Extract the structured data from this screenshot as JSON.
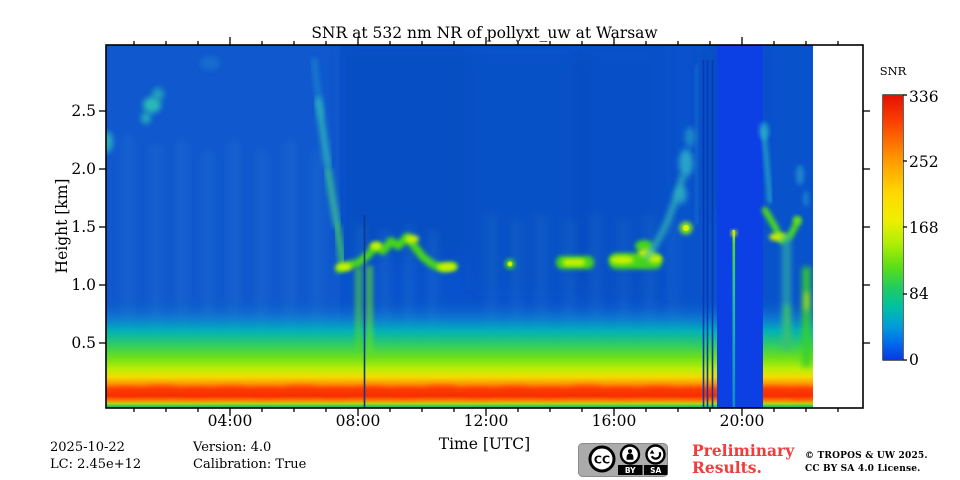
{
  "figure": {
    "title": "SNR at 532 nm NR of pollyxt_uw at Warsaw"
  },
  "axes": {
    "xlabel": "Time [UTC]",
    "ylabel": "Height [km]",
    "xticks": [
      "04:00",
      "08:00",
      "12:00",
      "16:00",
      "20:00"
    ],
    "yticks": [
      "2.5",
      "2.0",
      "1.5",
      "1.0",
      "0.5"
    ]
  },
  "colorbar": {
    "label": "SNR",
    "ticks": [
      "336",
      "252",
      "168",
      "84",
      "0"
    ]
  },
  "chart_data": {
    "type": "heatmap",
    "title": "SNR at 532 nm NR of pollyxt_uw at Warsaw",
    "xlabel": "Time [UTC]",
    "ylabel": "Height [km]",
    "x_axis": {
      "start": "00:00",
      "end": "23:50",
      "major_ticks": [
        "04:00",
        "08:00",
        "12:00",
        "16:00",
        "20:00"
      ],
      "minor_tick_interval_hours": 1
    },
    "y_axis": {
      "min_km": 0.0,
      "max_km": 3.05,
      "ticks_km": [
        0.5,
        1.0,
        1.5,
        2.0,
        2.5
      ]
    },
    "colorbar": {
      "label": "SNR",
      "min": 0,
      "max": 336,
      "ticks": [
        0,
        84,
        168,
        252,
        336
      ],
      "colormap": "jet"
    },
    "data_coverage": {
      "start": "00:05",
      "end": "22:15",
      "gaps": [
        "~08:20 thin gap",
        "~18:50, ~18:58, ~19:05 thin gaps",
        "19:15-20:35 no-data band with one profile at ~19:45"
      ],
      "no_data_after": "22:15 (white until 24:00)"
    },
    "features": [
      {
        "desc": "strong near-surface layer (red/orange band)",
        "time": "00:00-22:15",
        "height_km": [
          0.0,
          0.25
        ],
        "snr": [
          250,
          336
        ]
      },
      {
        "desc": "surface gradient cyan-green-yellow-red toward ground, wavy texture",
        "time": "all",
        "height_km": [
          0.0,
          0.6
        ]
      },
      {
        "desc": "weak cloud/aerosol patch",
        "time": "01:30-02:00",
        "height_km": [
          2.1,
          2.4
        ],
        "snr": 90
      },
      {
        "desc": "small cyan patch at left edge",
        "time": "00:00-00:15",
        "height_km": [
          2.2,
          2.35
        ],
        "snr": 85
      },
      {
        "desc": "layer descending from 2.6 km to 1.3 km",
        "time": "06:30-07:40",
        "snr": 100
      },
      {
        "desc": "wavy convective boundary-layer top",
        "time": "07:40-11:10",
        "height_km": [
          1.05,
          1.45
        ],
        "snr": [
          150,
          230
        ]
      },
      {
        "desc": "isolated layer spot",
        "time": "12:45",
        "height_km": [
          1.15,
          1.25
        ],
        "snr": 170
      },
      {
        "desc": "layer segment",
        "time": "14:05-15:10",
        "height_km": [
          1.15,
          1.3
        ],
        "snr": 200
      },
      {
        "desc": "layer segment with bumps",
        "time": "15:45-17:25",
        "height_km": [
          1.15,
          1.35
        ],
        "snr": 210
      },
      {
        "desc": "rising plume to ~2 km with bright spot at 1.55 km",
        "time": "17:00-18:45",
        "height_km": [
          1.3,
          2.1
        ],
        "snr": 150
      },
      {
        "desc": "single profile inside no-data band, green up to ~1.5 km",
        "time": "~19:45"
      },
      {
        "desc": "descending cloud streaks and broken layers",
        "time": "20:40-22:15",
        "height_km": [
          1.2,
          2.3
        ],
        "snr": 160
      },
      {
        "desc": "two bright low-level columns",
        "time": "~21:15 and ~21:55",
        "height_km": [
          0.4,
          1.5
        ],
        "snr": 180
      }
    ]
  },
  "footer": {
    "date": "2025-10-22",
    "lc": "LC: 2.45e+12",
    "version": "Version: 4.0",
    "calibration": "Calibration: True"
  },
  "stamp": {
    "line1": "Preliminary",
    "line2": "Results.",
    "color": "#f23b3b"
  },
  "license": {
    "line1": "© TROPOS & UW 2025.",
    "line2": "CC BY SA 4.0 License.",
    "badge": {
      "cc": "CC",
      "by": "BY",
      "sa": "SA"
    }
  }
}
